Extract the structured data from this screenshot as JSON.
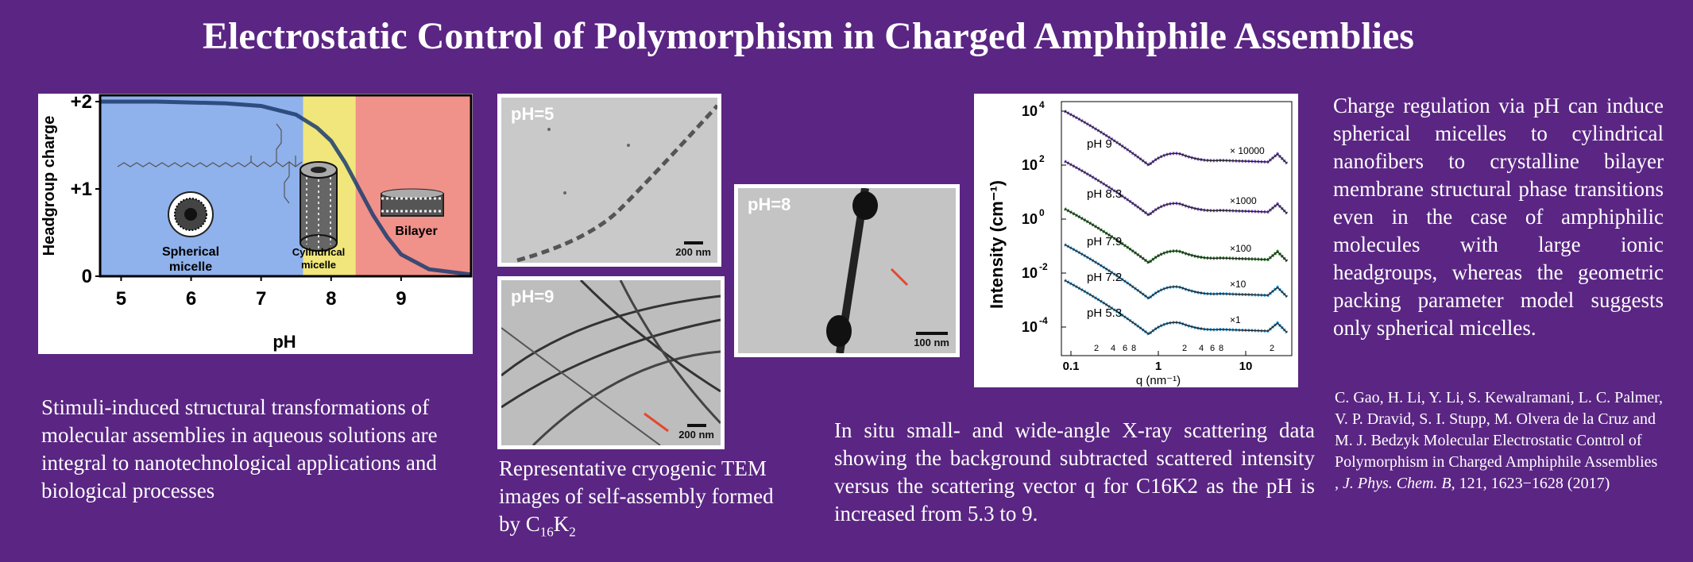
{
  "title": "Electrostatic Control of Polymorphism in Charged Amphiphile Assemblies",
  "colors": {
    "background": "#5a2583",
    "blue_region": "#8fb1ec",
    "yellow_region": "#f1e67c",
    "red_region": "#f0918a",
    "curve": "#1c3c6e"
  },
  "phase_chart": {
    "ylabel": "Headgroup charge",
    "xlabel": "pH",
    "yticks": [
      "+2",
      "+1",
      "0"
    ],
    "xticks": [
      "5",
      "6",
      "7",
      "8",
      "9"
    ],
    "labels": {
      "spherical": "Spherical micelle",
      "spherical_l1": "Spherical",
      "spherical_l2": "micelle",
      "cylindrical_l1": "Cylindrical",
      "cylindrical_l2": "micelle",
      "bilayer": "Bilayer"
    }
  },
  "chart_data": {
    "type": "line",
    "xlabel": "pH",
    "ylabel": "Headgroup charge",
    "xlim": [
      4.7,
      10.0
    ],
    "ylim": [
      0,
      2
    ],
    "regions": [
      {
        "name": "Spherical micelle",
        "x": [
          4.7,
          7.6
        ]
      },
      {
        "name": "Cylindrical micelle",
        "x": [
          7.6,
          8.35
        ]
      },
      {
        "name": "Bilayer",
        "x": [
          8.35,
          10.0
        ]
      }
    ],
    "x": [
      4.7,
      5.5,
      6.5,
      7.0,
      7.5,
      7.8,
      8.0,
      8.2,
      8.4,
      8.6,
      8.8,
      9.0,
      9.4,
      10.0
    ],
    "values": [
      2.0,
      2.0,
      1.98,
      1.95,
      1.85,
      1.7,
      1.55,
      1.3,
      1.0,
      0.7,
      0.45,
      0.25,
      0.08,
      0.02
    ]
  },
  "tem": {
    "ph5": "pH=5",
    "ph9": "pH=9",
    "ph8": "pH=8",
    "scale200": "200 nm",
    "scale100": "100 nm",
    "caption_l1": "Representative cryogenic TEM",
    "caption_l2": "images of self-assembly formed",
    "caption_l3_pre": "by C",
    "caption_sub1": "16",
    "caption_mid": "K",
    "caption_sub2": "2"
  },
  "saxs": {
    "ylabel": "Intensity (cm⁻¹)",
    "xlabel": "q (nm⁻¹)",
    "ytick_exps": [
      "4",
      "2",
      "0",
      "-2",
      "-4"
    ],
    "ytick_base": "10",
    "xticks": [
      "0.1",
      "1",
      "10"
    ],
    "minor_ticks": [
      "2",
      "4",
      "6",
      "8",
      "2",
      "4",
      "6",
      "8",
      "2"
    ],
    "curves": [
      "pH 9",
      "pH 8.3",
      "pH 7.9",
      "pH 7.2",
      "pH 5.3"
    ],
    "multipliers": [
      "× 10000",
      "×1000",
      "×100",
      "×10",
      "×1"
    ]
  },
  "texts": {
    "left": "Stimuli-induced structural transformations of molecular assemblies in aqueous solutions are integral to nanotechnological applications and biological processes",
    "middle": "In situ small- and wide-angle X-ray scattering data showing the background subtracted scattered intensity versus the scattering vector q for C16K2 as the pH is increased from 5.3 to 9.",
    "right": "Charge regulation via pH can induce spherical micelles to cylindrical nanofibers to crystalline bilayer membrane structural phase transitions even in the case of amphiphilic molecules with large ionic headgroups, whereas the geometric packing parameter model suggests only spherical micelles."
  },
  "reference": {
    "authors": "C. Gao, H. Li, Y. Li, S. Kewalramani, L. C. Palmer, V. P. Dravid, S. I. Stupp, M. Olvera de la Cruz and M. J. Bedzyk Molecular Electrostatic Control of Polymorphism in Charged Amphiphile Assemblies ,",
    "journal": "J. Phys. Chem. B",
    "details": ", 121, 1623−1628 (2017)"
  }
}
